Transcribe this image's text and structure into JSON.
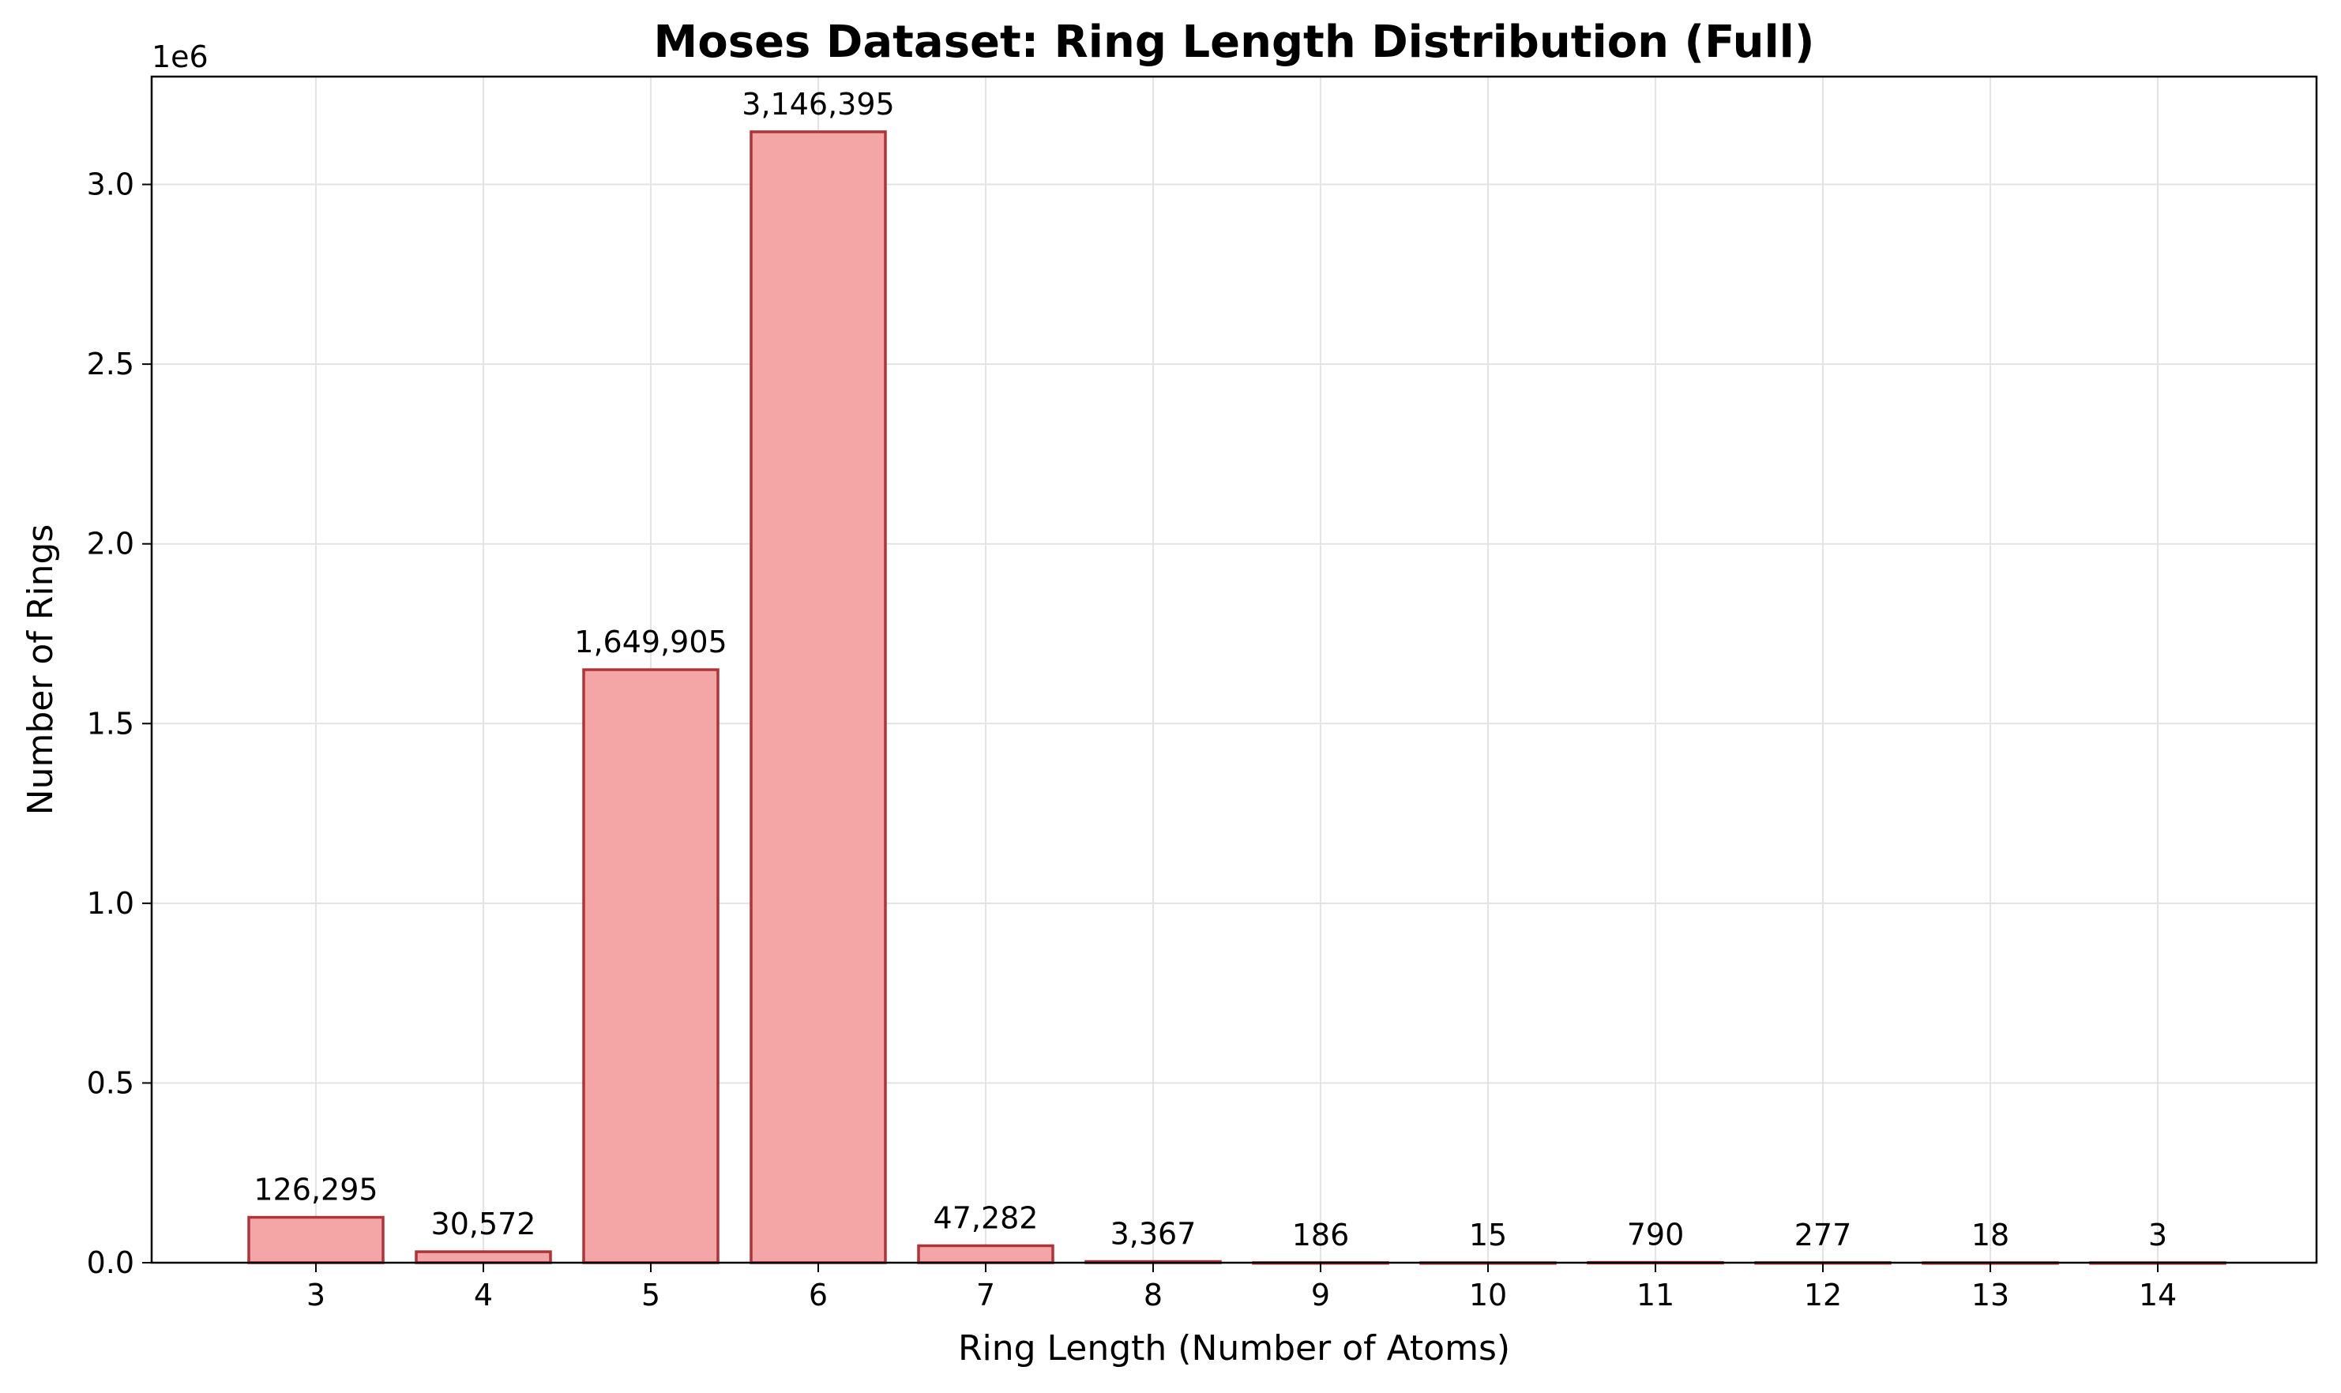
{
  "chart_data": {
    "type": "bar",
    "title": "Moses Dataset: Ring Length Distribution (Full)",
    "xlabel": "Ring Length (Number of Atoms)",
    "ylabel": "Number of Rings",
    "y_multiplier_label": "1e6",
    "categories": [
      "3",
      "4",
      "5",
      "6",
      "7",
      "8",
      "9",
      "10",
      "11",
      "12",
      "13",
      "14"
    ],
    "values": [
      126295,
      30572,
      1649905,
      3146395,
      47282,
      3367,
      186,
      15,
      790,
      277,
      18,
      3
    ],
    "data_labels": [
      "126,295",
      "30,572",
      "1,649,905",
      "3,146,395",
      "47,282",
      "3,367",
      "186",
      "15",
      "790",
      "277",
      "18",
      "3"
    ],
    "ylim": [
      0,
      3300000
    ],
    "yticks": [
      0,
      500000,
      1000000,
      1500000,
      2000000,
      2500000,
      3000000
    ],
    "ytick_labels": [
      "0.0",
      "0.5",
      "1.0",
      "1.5",
      "2.0",
      "2.5",
      "3.0"
    ],
    "grid": true,
    "colors": {
      "bar_fill": "#f4a6a7",
      "bar_edge": "#ad3538"
    }
  }
}
